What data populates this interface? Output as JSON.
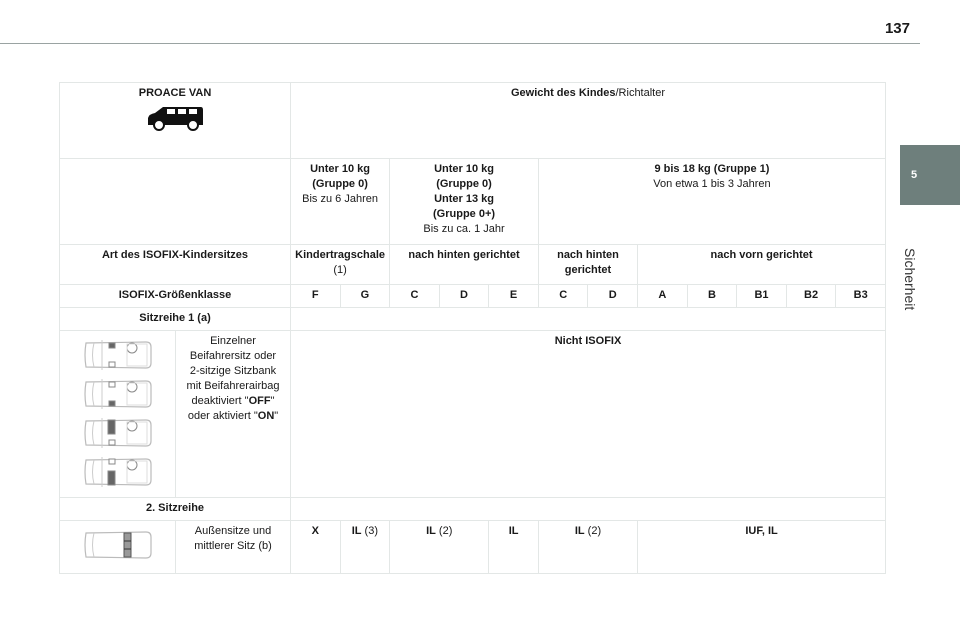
{
  "page_number": "137",
  "side_tab": {
    "chapter": "5",
    "label": "Sicherheit",
    "color": "#6e7f7c"
  },
  "table": {
    "vehicle": "PROACE VAN",
    "vehicle_icon": "van-icon",
    "weight_header_bold": "Gewicht des Kindes",
    "weight_header_rest": "/Richtalter",
    "groups": [
      {
        "l1": "Unter 10 kg",
        "l2": "(Gruppe 0)",
        "l3": "Bis zu 6 Jahren"
      },
      {
        "l1": "Unter 10 kg",
        "l2": "(Gruppe 0)",
        "l3": "Unter 13 kg",
        "l4": "(Gruppe 0+)",
        "l5": "Bis zu ca. 1 Jahr"
      },
      {
        "l1": "9 bis 18 kg (Gruppe 1)",
        "l2": "Von etwa 1 bis 3 Jahren"
      }
    ],
    "type_label": "Art des ISOFIX-Kindersitzes",
    "types": [
      {
        "l1": "Kindertragschale",
        "l2": "(1)"
      },
      {
        "l1": "nach hinten gerichtet"
      },
      {
        "l1": "nach hinten",
        "l2": "gerichtet"
      },
      {
        "l1": "nach vorn gerichtet"
      }
    ],
    "size_label": "ISOFIX-Größenklasse",
    "sizes": [
      "F",
      "G",
      "C",
      "D",
      "E",
      "C",
      "D",
      "A",
      "B",
      "B1",
      "B2",
      "B3"
    ],
    "row1_header": "Sitzreihe 1 (a)",
    "row1": {
      "desc": [
        "Einzelner",
        "Beifahrersitz oder",
        "2-sitzige Sitzbank",
        "mit Beifahrerairbag",
        "deaktiviert \"",
        "OFF",
        "\"",
        "oder aktiviert \"",
        "ON",
        "\""
      ],
      "value": "Nicht ISOFIX"
    },
    "row2_header": "2. Sitzreihe",
    "row2": {
      "desc": [
        "Außensitze und",
        "mittlerer Sitz (b)"
      ],
      "values": [
        {
          "bold": "X",
          "note": ""
        },
        {
          "bold": "IL",
          "note": " (3)"
        },
        {
          "bold": "IL",
          "note": " (2)"
        },
        {
          "bold": "IL",
          "note": ""
        },
        {
          "bold": "IL",
          "note": " (2)"
        },
        {
          "bold": "IUF, IL",
          "note": ""
        }
      ]
    }
  }
}
